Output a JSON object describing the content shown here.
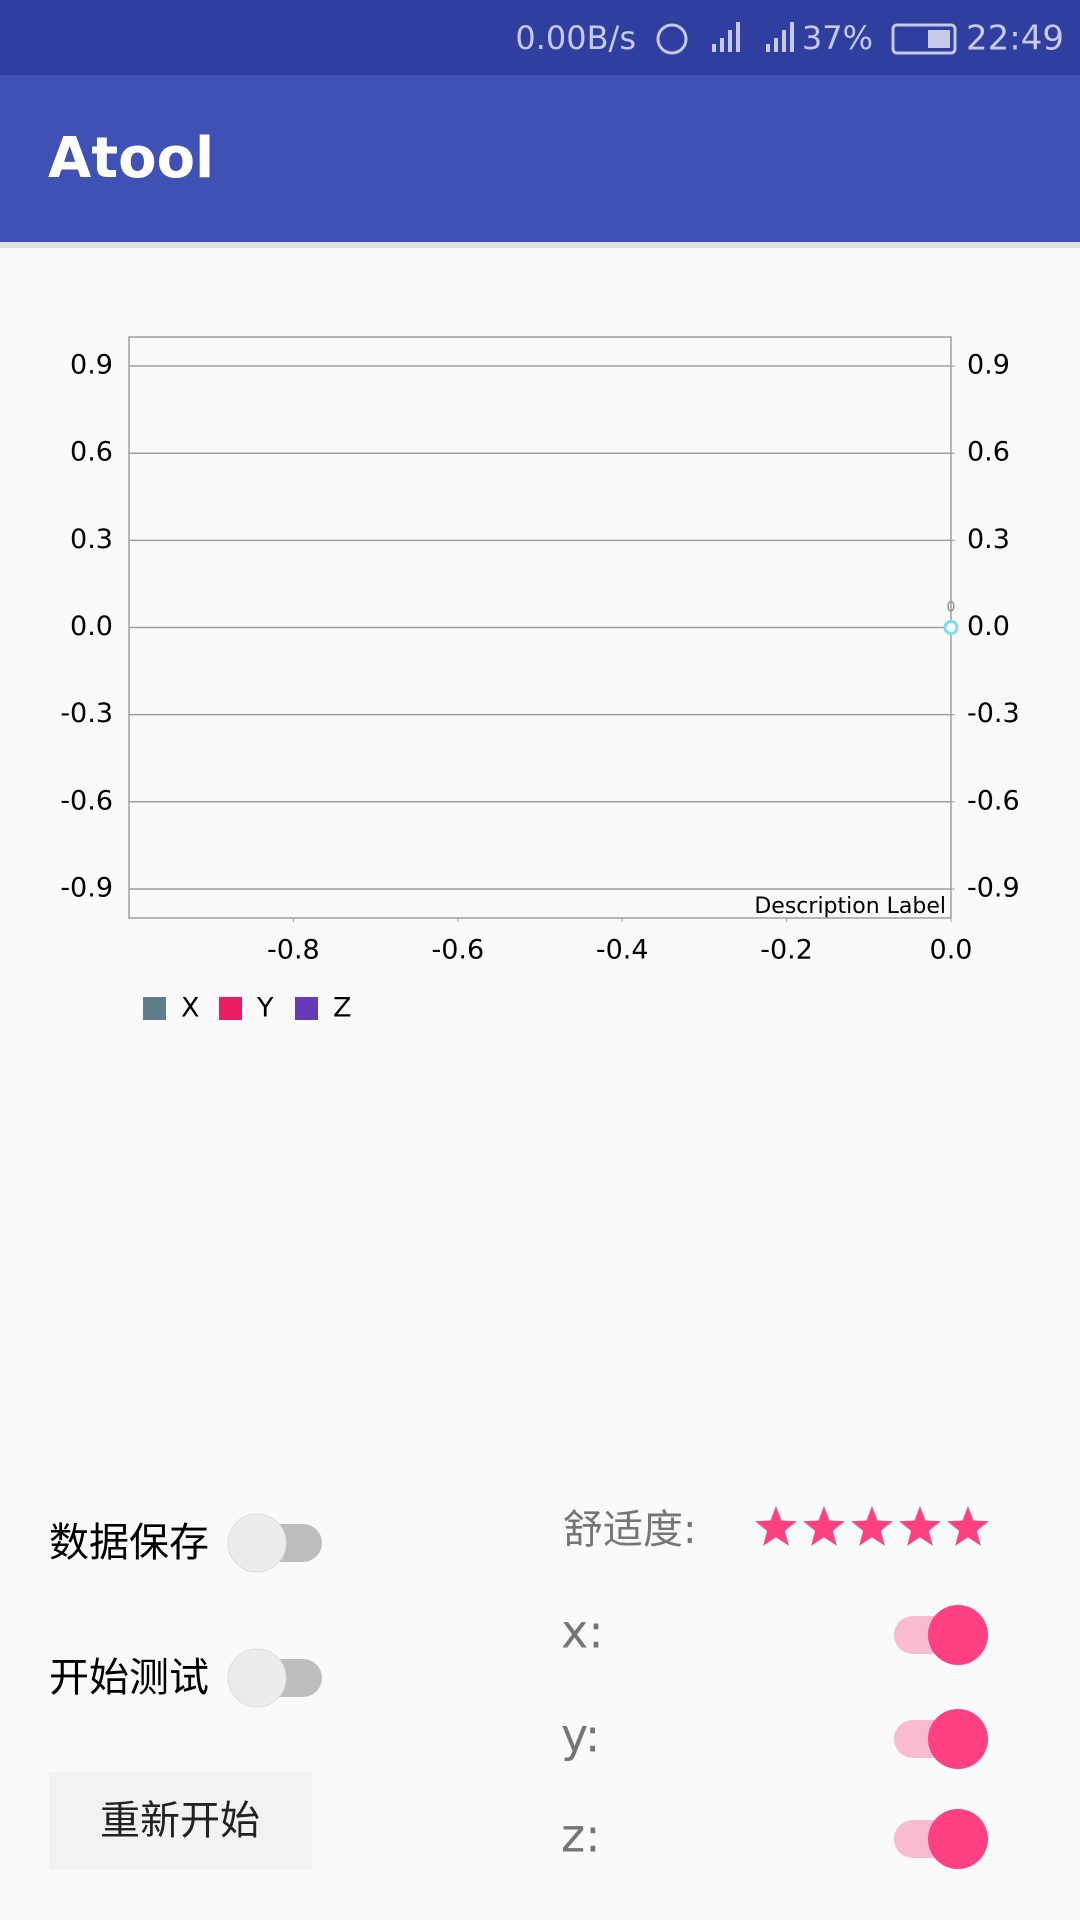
{
  "status_bar": {
    "net_speed": "0.00B/s",
    "battery": "37%",
    "time": "22:49"
  },
  "app_bar": {
    "title": "Atool"
  },
  "chart_data": {
    "type": "line",
    "description": "Description Label",
    "x": [
      0
    ],
    "series": [
      {
        "name": "X",
        "color": "#607d8b",
        "values": [
          0
        ]
      },
      {
        "name": "Y",
        "color": "#e91e63",
        "values": [
          0
        ]
      },
      {
        "name": "Z",
        "color": "#673ab7",
        "values": [
          0
        ]
      }
    ],
    "marker_color": "#80deea",
    "xlim": [
      -1,
      0
    ],
    "xticks": [
      -0.8,
      -0.6,
      -0.4,
      -0.2,
      {
        "value": 0,
        "label": "0.0"
      }
    ],
    "ylim": [
      -1,
      1
    ],
    "yticks": [
      0.9,
      0.6,
      0.3,
      {
        "value": 0,
        "label": "0.0"
      },
      -0.3,
      -0.6,
      -0.9
    ],
    "y2lim": [
      -1,
      1
    ],
    "y2ticks": [
      0.9,
      0.6,
      0.3,
      {
        "value": 0,
        "label": "0.0"
      },
      -0.3,
      -0.6,
      -0.9
    ],
    "grid": true
  },
  "controls": {
    "data_save": {
      "label": "数据保存",
      "on": false
    },
    "start_test": {
      "label": "开始测试",
      "on": false
    },
    "restart_button": "重新开始",
    "comfort": {
      "label": "舒适度:",
      "rating": 5
    },
    "axes": [
      {
        "label": "x:",
        "on": true
      },
      {
        "label": "y:",
        "on": true
      },
      {
        "label": "z:",
        "on": true
      }
    ]
  }
}
